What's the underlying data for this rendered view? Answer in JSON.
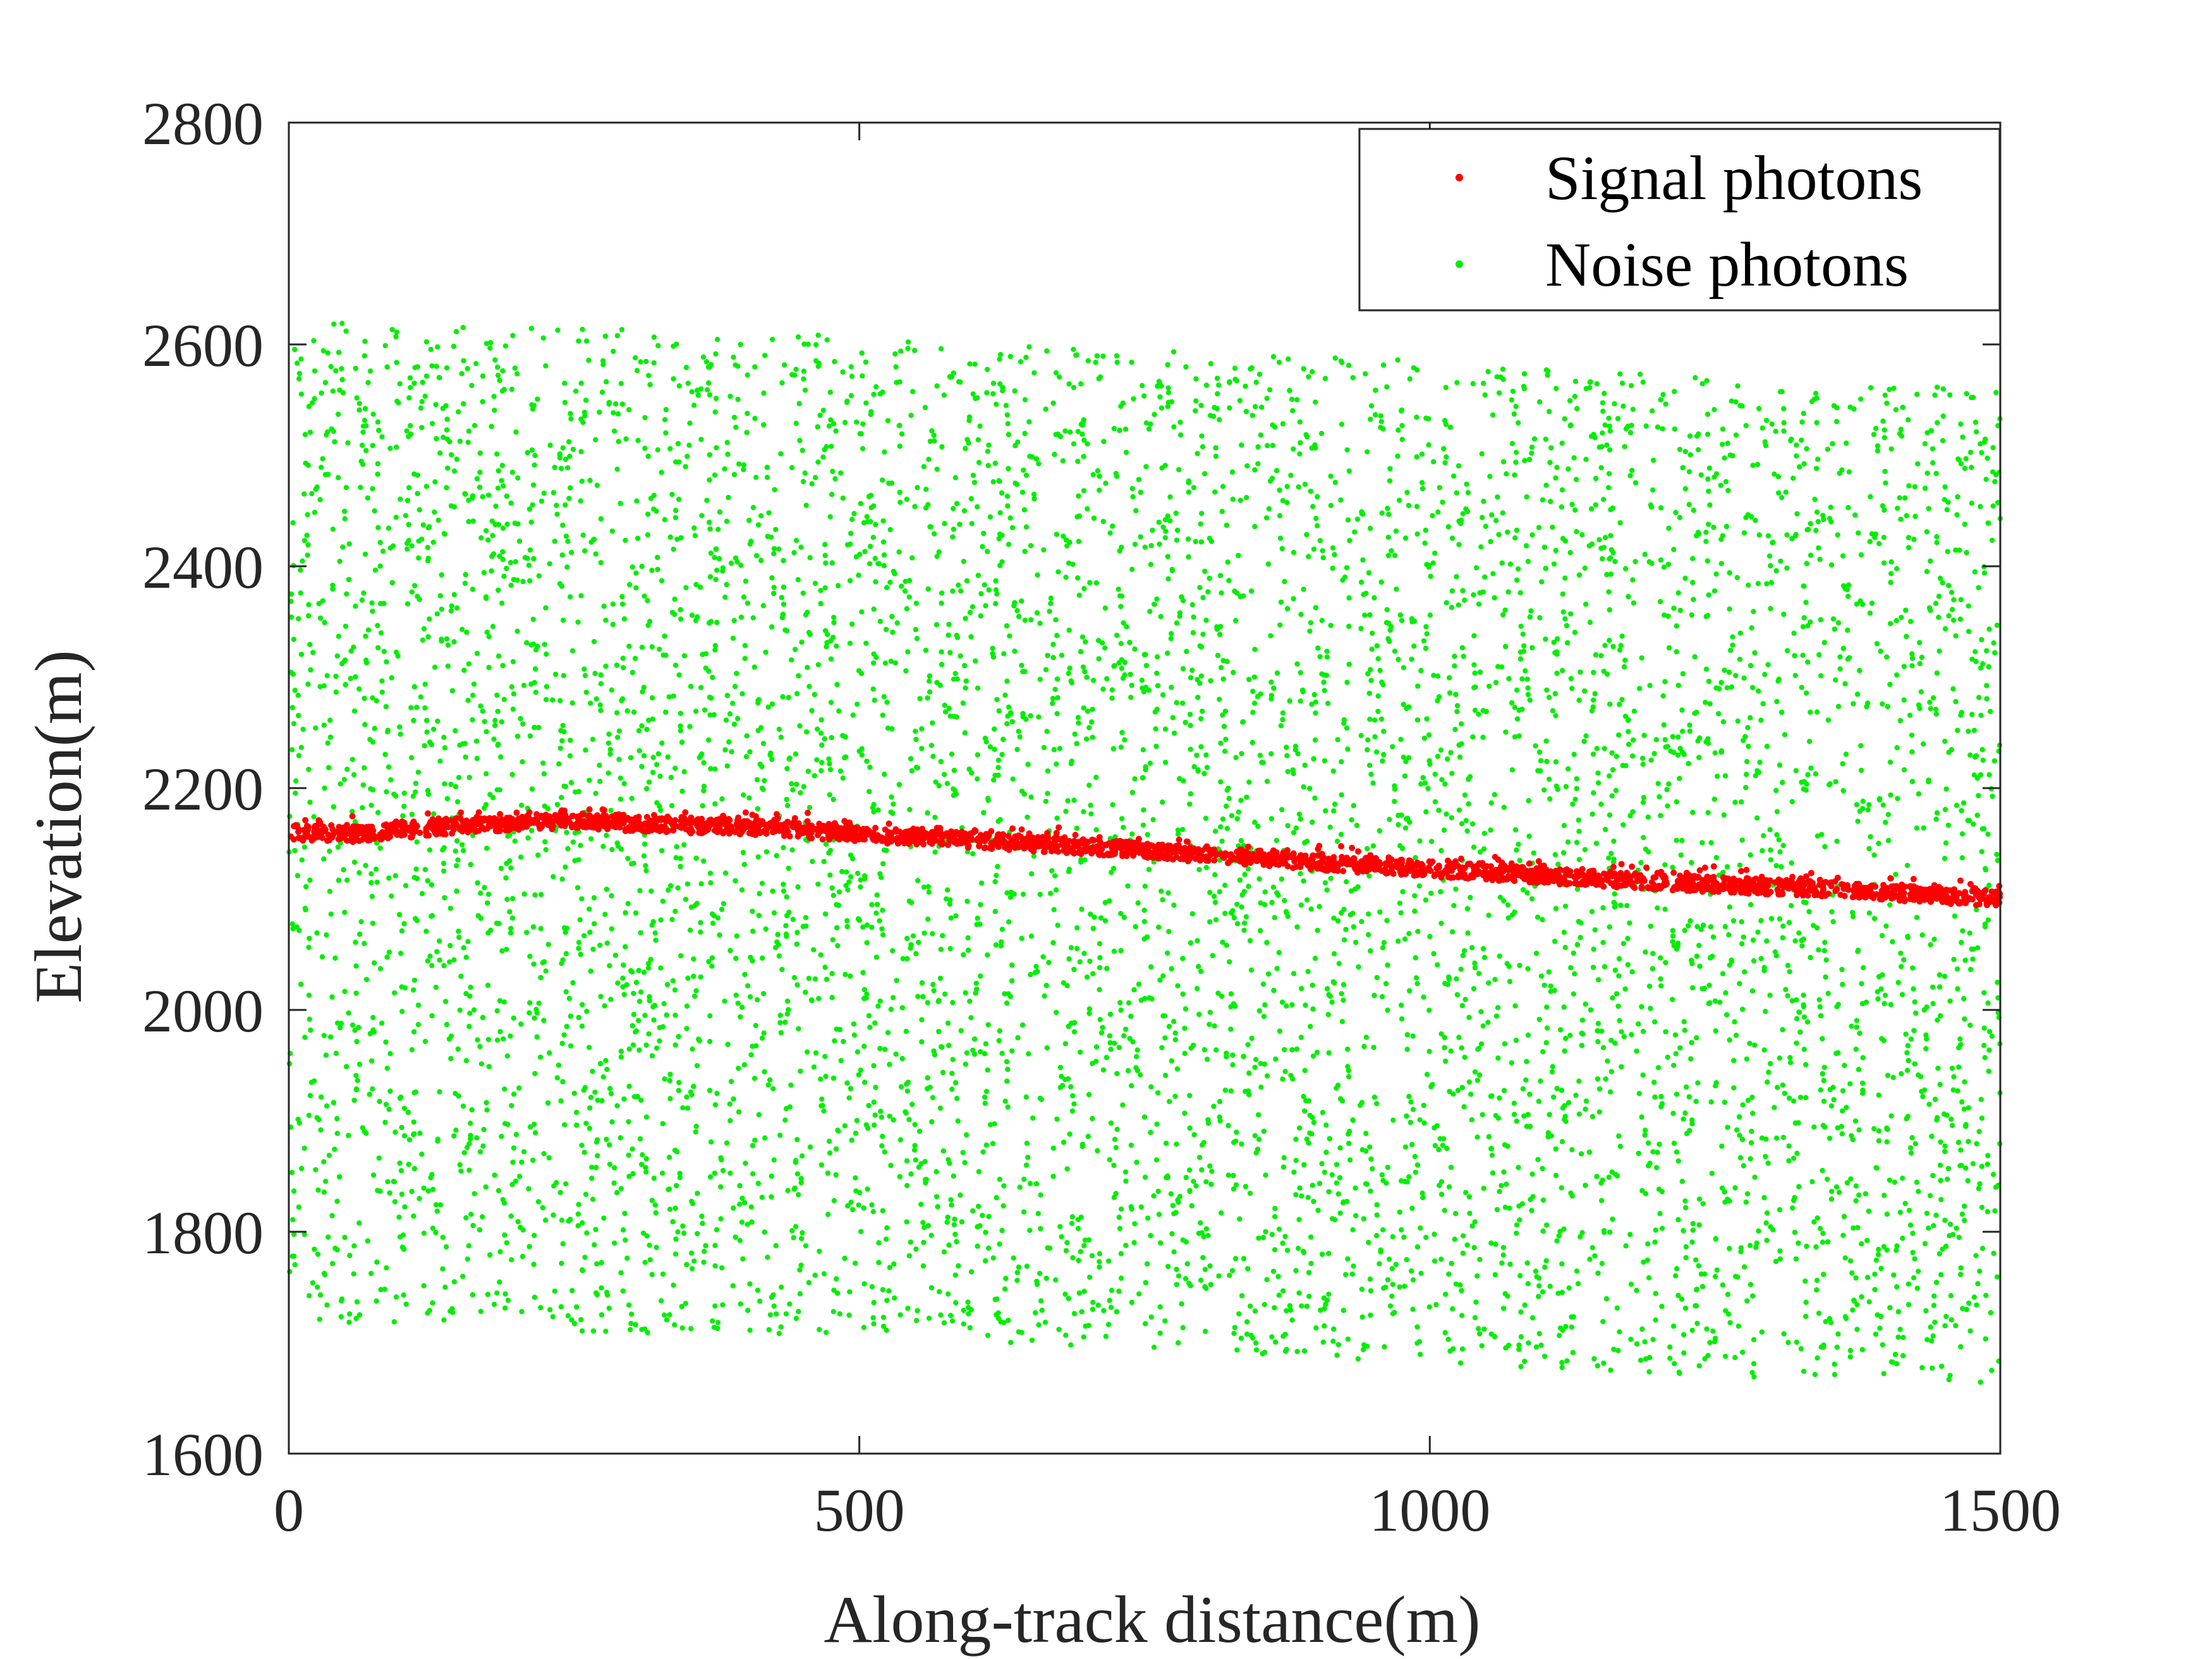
{
  "chart_data": {
    "type": "scatter",
    "title": "",
    "xlabel": "Along-track distance(m)",
    "ylabel": "Elevation(m)",
    "xlim": [
      0,
      1500
    ],
    "ylim": [
      1600,
      2800
    ],
    "xticks": [
      0,
      500,
      1000,
      1500
    ],
    "yticks": [
      1600,
      1800,
      2000,
      2200,
      2400,
      2600,
      2800
    ],
    "grid": false,
    "legend_position": "top-right",
    "series": [
      {
        "name": "Signal photons",
        "color": "#ff0000",
        "marker": "dot",
        "profile_x": [
          0,
          50,
          100,
          150,
          200,
          250,
          300,
          350,
          400,
          450,
          500,
          550,
          600,
          650,
          700,
          750,
          800,
          850,
          900,
          950,
          1000,
          1050,
          1100,
          1150,
          1200,
          1250,
          1300,
          1350,
          1400,
          1450,
          1500
        ],
        "profile_y": [
          2160,
          2158,
          2162,
          2166,
          2168,
          2170,
          2168,
          2166,
          2165,
          2162,
          2158,
          2156,
          2153,
          2150,
          2147,
          2144,
          2140,
          2137,
          2133,
          2130,
          2127,
          2124,
          2121,
          2118,
          2115,
          2113,
          2111,
          2109,
          2106,
          2103,
          2100
        ],
        "vertical_spread": 14
      },
      {
        "name": "Noise photons",
        "color": "#00ee00",
        "marker": "dot",
        "x_range": [
          0,
          1500
        ],
        "lower_bound_x": [
          0,
          250,
          500,
          750,
          1000,
          1250,
          1500
        ],
        "lower_bound_y": [
          1720,
          1710,
          1705,
          1695,
          1680,
          1670,
          1660
        ],
        "upper_bound_x": [
          0,
          250,
          500,
          750,
          1000,
          1250,
          1500
        ],
        "upper_bound_y": [
          2620,
          2615,
          2608,
          2595,
          2585,
          2570,
          2560
        ],
        "approx_count": 7000
      }
    ]
  }
}
